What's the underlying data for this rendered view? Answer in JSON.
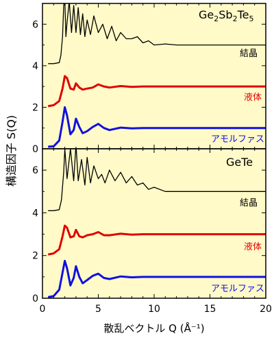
{
  "chart_data": [
    {
      "type": "line",
      "label": "Ge2Sb2Te5",
      "ylim": [
        0,
        7
      ],
      "xlim": [
        0,
        20
      ],
      "series": [
        {
          "name": "結晶",
          "color": "#000000",
          "x": [
            0.5,
            1.0,
            1.5,
            1.65,
            1.8,
            1.9,
            2.0,
            2.1,
            2.2,
            2.4,
            2.6,
            2.8,
            3.0,
            3.2,
            3.4,
            3.6,
            3.8,
            4.0,
            4.3,
            4.6,
            5.0,
            5.4,
            5.8,
            6.2,
            6.6,
            7.0,
            7.5,
            8.0,
            8.5,
            9.0,
            9.5,
            10,
            11,
            12,
            13,
            14,
            15,
            16,
            17,
            18,
            19,
            20
          ],
          "y": [
            4.1,
            4.1,
            4.15,
            4.5,
            5.4,
            6.9,
            7.2,
            5.4,
            6.1,
            7.1,
            5.6,
            6.9,
            5.6,
            6.8,
            5.5,
            6.5,
            5.4,
            6.2,
            5.5,
            6.4,
            5.6,
            6.0,
            5.3,
            5.9,
            5.2,
            5.6,
            5.3,
            5.3,
            5.4,
            5.1,
            5.2,
            5.0,
            5.05,
            5.0,
            5.0,
            5.0,
            5.0,
            5.0,
            5.0,
            5.0,
            5.0,
            5.0
          ]
        },
        {
          "name": "液体",
          "color": "#e00000",
          "x": [
            0.5,
            1.0,
            1.5,
            1.8,
            2.0,
            2.2,
            2.5,
            2.8,
            3.0,
            3.3,
            3.6,
            4.0,
            4.5,
            5.0,
            5.5,
            6.0,
            7,
            8,
            9,
            10,
            12,
            14,
            16,
            18,
            20
          ],
          "y": [
            2.05,
            2.1,
            2.3,
            2.9,
            3.5,
            3.4,
            2.9,
            2.85,
            3.15,
            2.95,
            2.85,
            2.9,
            2.95,
            3.1,
            3.0,
            2.95,
            3.02,
            2.98,
            3.0,
            3.0,
            3.0,
            3.0,
            3.0,
            3.0,
            3.0
          ]
        },
        {
          "name": "アモルファス",
          "color": "#1010e0",
          "x": [
            0.5,
            1.0,
            1.5,
            1.8,
            2.0,
            2.2,
            2.5,
            2.8,
            3.0,
            3.3,
            3.6,
            4.0,
            4.5,
            5.0,
            5.5,
            6.0,
            7,
            8,
            9,
            10,
            12,
            14,
            16,
            18,
            20
          ],
          "y": [
            0.1,
            0.12,
            0.4,
            1.3,
            2.0,
            1.6,
            0.7,
            0.9,
            1.45,
            1.05,
            0.75,
            0.85,
            1.05,
            1.2,
            1.0,
            0.9,
            1.02,
            0.98,
            1.0,
            1.0,
            1.0,
            1.0,
            1.0,
            1.0,
            1.0
          ]
        }
      ]
    },
    {
      "type": "line",
      "label": "GeTe",
      "ylim": [
        0,
        7
      ],
      "xlim": [
        0,
        20
      ],
      "series": [
        {
          "name": "結晶",
          "color": "#000000",
          "x": [
            0.5,
            1.0,
            1.5,
            1.7,
            1.9,
            2.0,
            2.2,
            2.5,
            2.8,
            3.0,
            3.2,
            3.5,
            3.8,
            4.0,
            4.3,
            4.6,
            5.0,
            5.3,
            5.6,
            6.0,
            6.5,
            7.0,
            7.5,
            8.0,
            8.5,
            9.0,
            9.5,
            10,
            11,
            12,
            13,
            14,
            15,
            16,
            17,
            18,
            19,
            20
          ],
          "y": [
            4.1,
            4.1,
            4.15,
            4.6,
            5.9,
            7.0,
            5.6,
            7.0,
            5.5,
            7.2,
            5.5,
            6.5,
            5.3,
            6.6,
            5.4,
            6.2,
            5.6,
            5.8,
            5.4,
            6.0,
            5.5,
            5.9,
            5.4,
            5.7,
            5.3,
            5.4,
            5.1,
            5.2,
            5.0,
            5.0,
            5.0,
            5.0,
            5.0,
            5.0,
            5.0,
            5.0,
            5.0,
            5.0
          ]
        },
        {
          "name": "液体",
          "color": "#e00000",
          "x": [
            0.5,
            1.0,
            1.5,
            1.8,
            2.0,
            2.2,
            2.5,
            2.8,
            3.0,
            3.3,
            3.6,
            4.0,
            4.5,
            5.0,
            5.5,
            6.0,
            7,
            8,
            9,
            10,
            12,
            14,
            16,
            18,
            20
          ],
          "y": [
            2.05,
            2.1,
            2.3,
            2.9,
            3.4,
            3.3,
            2.85,
            2.9,
            3.2,
            2.9,
            2.85,
            2.95,
            3.0,
            3.1,
            2.95,
            2.95,
            3.02,
            2.98,
            3.0,
            3.0,
            3.0,
            3.0,
            3.0,
            3.0,
            3.0
          ]
        },
        {
          "name": "アモルファス",
          "color": "#1010e0",
          "x": [
            0.5,
            1.0,
            1.5,
            1.8,
            2.0,
            2.2,
            2.5,
            2.8,
            3.0,
            3.3,
            3.6,
            4.0,
            4.5,
            5.0,
            5.5,
            6.0,
            7,
            8,
            9,
            10,
            12,
            14,
            16,
            18,
            20
          ],
          "y": [
            0.05,
            0.1,
            0.4,
            1.2,
            1.75,
            1.4,
            0.6,
            0.95,
            1.5,
            1.0,
            0.7,
            0.85,
            1.05,
            1.15,
            0.95,
            0.9,
            1.02,
            0.98,
            1.0,
            1.0,
            1.0,
            1.0,
            1.0,
            1.0,
            1.0
          ]
        }
      ]
    }
  ],
  "axes": {
    "ylabel": "構造因子 S(Q)",
    "xlabel": "散乱ベクトル Q (Å⁻¹)",
    "xticks": [
      "0",
      "5",
      "10",
      "15",
      "20"
    ],
    "yticks": [
      "0",
      "2",
      "4",
      "6"
    ]
  },
  "colors": {
    "background": "#fffac8",
    "frame": "#000000"
  }
}
